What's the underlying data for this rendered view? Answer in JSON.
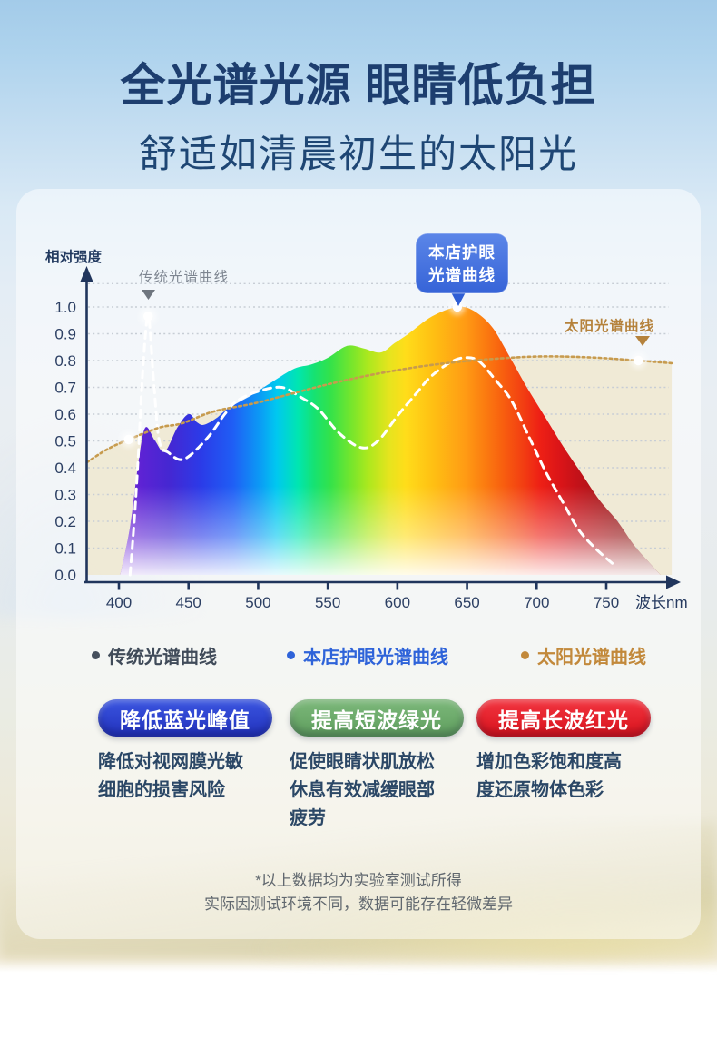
{
  "page": {
    "title": "全光谱光源 眼睛低负担",
    "subtitle": "舒适如清晨初生的太阳光",
    "footnote_line1": "*以上数据均为实验室测试所得",
    "footnote_line2": "实际因测试环境不同，数据可能存在轻微差异"
  },
  "chart_data": {
    "type": "area",
    "title": "",
    "ylabel": "相对强度",
    "xlabel": "波长nm",
    "xlim": [
      400,
      750
    ],
    "ylim": [
      0,
      1.0
    ],
    "grid": true,
    "legend_position": "bottom",
    "yticks": [
      "1.0",
      "0.9",
      "0.8",
      "0.7",
      "0.6",
      "0.5",
      "0.4",
      "0.3",
      "0.2",
      "0.1",
      "0.0"
    ],
    "xticks": [
      "400",
      "450",
      "500",
      "550",
      "600",
      "650",
      "700",
      "750"
    ],
    "annotations": {
      "traditional_label": "传统光谱曲线",
      "store_label_line1": "本店护眼",
      "store_label_line2": "光谱曲线",
      "sun_label": "太阳光谱曲线"
    },
    "series": [
      {
        "name": "本店护眼光谱曲线",
        "style": "rainbow-area",
        "color": "spectrum-gradient",
        "points": [
          [
            401,
            0.0
          ],
          [
            408,
            0.18
          ],
          [
            414,
            0.42
          ],
          [
            419,
            0.55
          ],
          [
            426,
            0.5
          ],
          [
            433,
            0.46
          ],
          [
            442,
            0.55
          ],
          [
            450,
            0.6
          ],
          [
            456,
            0.57
          ],
          [
            461,
            0.56
          ],
          [
            470,
            0.585
          ],
          [
            478,
            0.62
          ],
          [
            495,
            0.67
          ],
          [
            510,
            0.72
          ],
          [
            526,
            0.77
          ],
          [
            538,
            0.785
          ],
          [
            550,
            0.81
          ],
          [
            564,
            0.855
          ],
          [
            576,
            0.845
          ],
          [
            588,
            0.83
          ],
          [
            598,
            0.865
          ],
          [
            608,
            0.9
          ],
          [
            625,
            0.965
          ],
          [
            643,
            1.0
          ],
          [
            655,
            0.985
          ],
          [
            668,
            0.925
          ],
          [
            680,
            0.82
          ],
          [
            693,
            0.7
          ],
          [
            706,
            0.59
          ],
          [
            719,
            0.48
          ],
          [
            732,
            0.38
          ],
          [
            745,
            0.28
          ],
          [
            758,
            0.2
          ],
          [
            770,
            0.11
          ],
          [
            781,
            0.045
          ],
          [
            789,
            0.0
          ]
        ]
      },
      {
        "name": "传统光谱曲线",
        "style": "traditional-dashed",
        "color": "#ffffff",
        "points": [
          [
            408,
            0.0
          ],
          [
            411,
            0.2
          ],
          [
            414,
            0.45
          ],
          [
            417,
            0.75
          ],
          [
            421,
            0.965
          ],
          [
            425,
            0.72
          ],
          [
            429,
            0.5
          ],
          [
            436,
            0.455
          ],
          [
            444,
            0.43
          ],
          [
            452,
            0.45
          ],
          [
            465,
            0.52
          ],
          [
            476,
            0.6
          ],
          [
            485,
            0.65
          ],
          [
            500,
            0.685
          ],
          [
            517,
            0.7
          ],
          [
            530,
            0.665
          ],
          [
            543,
            0.62
          ],
          [
            558,
            0.53
          ],
          [
            574,
            0.475
          ],
          [
            586,
            0.5
          ],
          [
            601,
            0.6
          ],
          [
            614,
            0.68
          ],
          [
            624,
            0.74
          ],
          [
            637,
            0.79
          ],
          [
            647,
            0.81
          ],
          [
            658,
            0.8
          ],
          [
            670,
            0.73
          ],
          [
            682,
            0.65
          ],
          [
            695,
            0.51
          ],
          [
            707,
            0.38
          ],
          [
            719,
            0.27
          ],
          [
            730,
            0.17
          ],
          [
            742,
            0.1
          ],
          [
            755,
            0.04
          ]
        ]
      },
      {
        "name": "太阳光谱曲线",
        "style": "sun-dotted",
        "color": "#c79b4e",
        "points": [
          [
            377,
            0.42
          ],
          [
            392,
            0.47
          ],
          [
            407,
            0.505
          ],
          [
            429,
            0.55
          ],
          [
            445,
            0.565
          ],
          [
            468,
            0.61
          ],
          [
            497,
            0.64
          ],
          [
            523,
            0.675
          ],
          [
            549,
            0.71
          ],
          [
            575,
            0.74
          ],
          [
            601,
            0.765
          ],
          [
            627,
            0.785
          ],
          [
            654,
            0.8
          ],
          [
            680,
            0.81
          ],
          [
            699,
            0.815
          ],
          [
            720,
            0.815
          ],
          [
            745,
            0.81
          ],
          [
            773,
            0.8
          ],
          [
            797,
            0.79
          ]
        ]
      }
    ],
    "markers": [
      {
        "nm": 421,
        "v": 0.965
      },
      {
        "nm": 643,
        "v": 1.0
      },
      {
        "nm": 407,
        "v": 0.505
      },
      {
        "nm": 773,
        "v": 0.8
      }
    ]
  },
  "legend": {
    "items": [
      {
        "label": "传统光谱曲线",
        "color": "#454f5c",
        "text_color": "#404b59"
      },
      {
        "label": "本店护眼光谱曲线",
        "color": "#2e63d9",
        "text_color": "#2e63d9"
      },
      {
        "label": "太阳光谱曲线",
        "color": "#c2893b",
        "text_color": "#c2893b"
      }
    ]
  },
  "cards": [
    {
      "badge": "降低蓝光峰值",
      "badge_gradient": [
        "#3a55e0",
        "#2232bd"
      ],
      "body": "降低对视网膜光敏细胞的损害风险"
    },
    {
      "badge": "提高短波绿光",
      "badge_gradient": [
        "#7cb87a",
        "#5f9e5e"
      ],
      "body": "促使眼睛状肌放松休息有效减缓眼部疲劳"
    },
    {
      "badge": "提高长波红光",
      "badge_gradient": [
        "#f23540",
        "#d8121c"
      ],
      "body": "增加色彩饱和度高度还原物体色彩"
    }
  ]
}
